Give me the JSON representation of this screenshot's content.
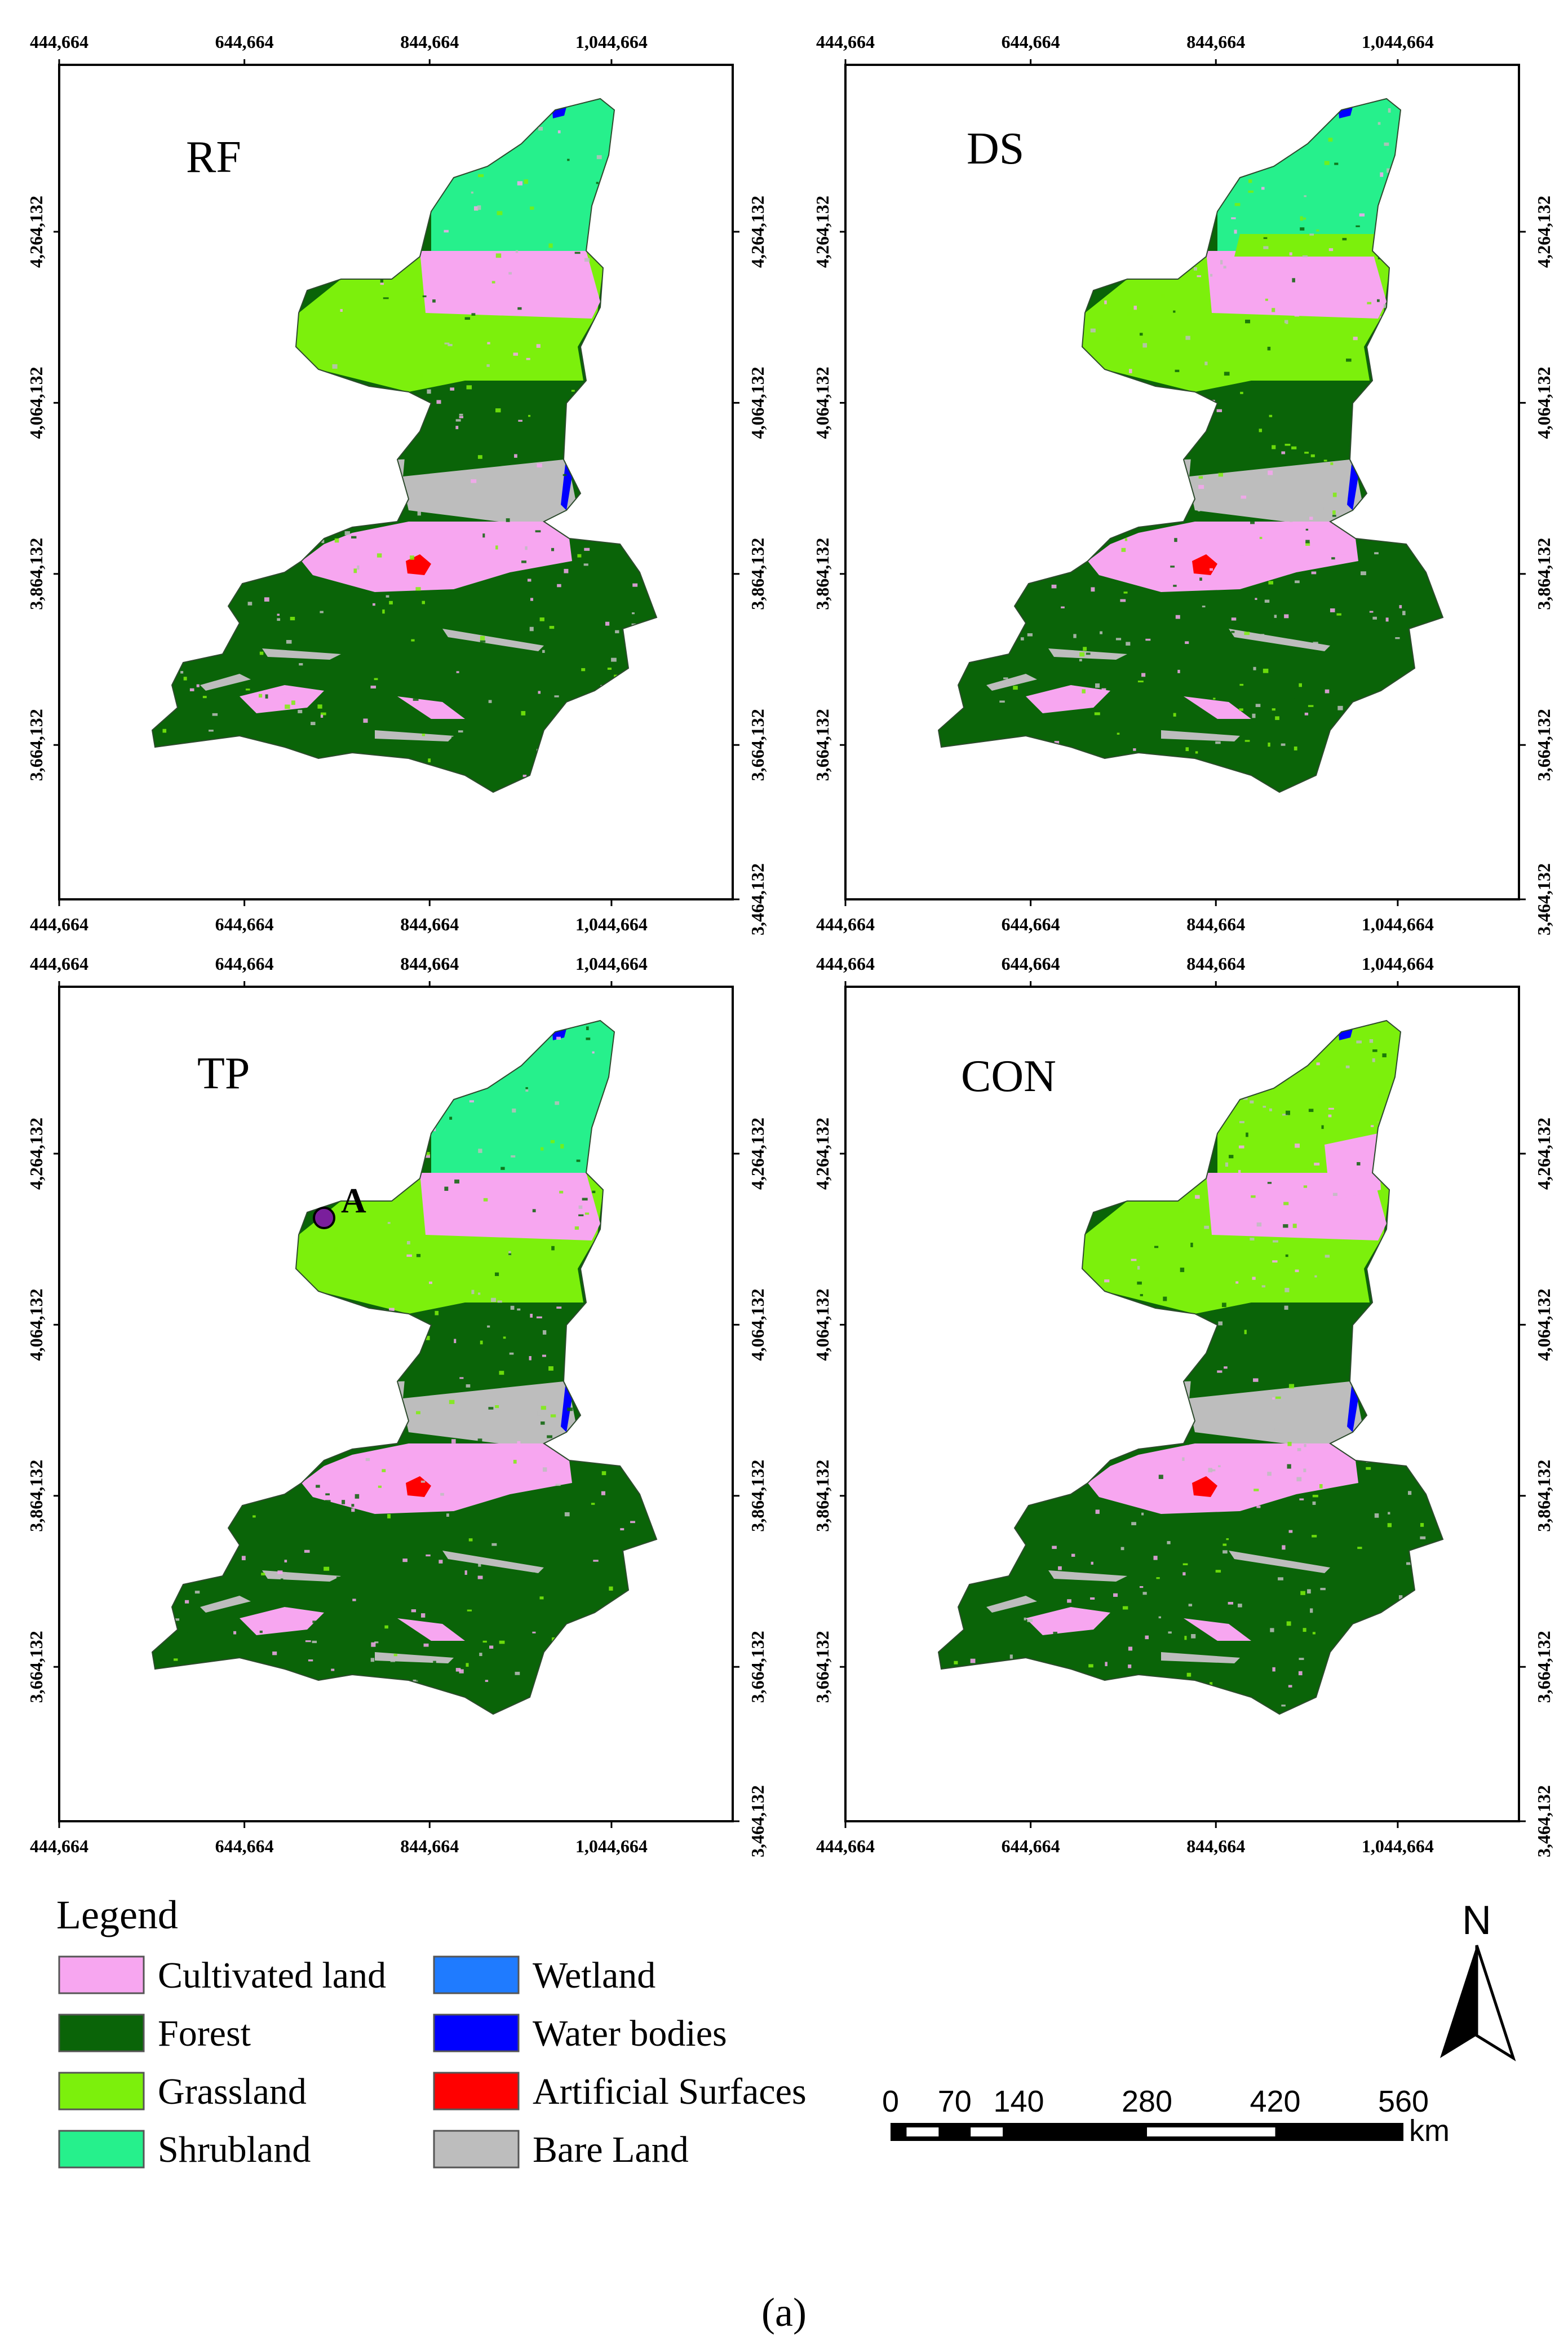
{
  "figure": {
    "caption": "(a)",
    "panels": [
      {
        "id": "rf",
        "title": "RF"
      },
      {
        "id": "ds",
        "title": "DS"
      },
      {
        "id": "tp",
        "title": "TP",
        "marker_label": "A"
      },
      {
        "id": "con",
        "title": "CON"
      }
    ],
    "axes": {
      "x_ticks": [
        "444,664",
        "644,664",
        "844,664",
        "1,044,664"
      ],
      "y_ticks": [
        "4,264,132",
        "4,064,132",
        "3,864,132",
        "3,664,132",
        "3,464,132"
      ]
    }
  },
  "legend": {
    "title": "Legend",
    "items": [
      {
        "label": "Cultivated land",
        "color": "#f7a6f0"
      },
      {
        "label": "Forest",
        "color": "#0a6408"
      },
      {
        "label": "Grassland",
        "color": "#7cf00c"
      },
      {
        "label": "Shrubland",
        "color": "#26f08c"
      },
      {
        "label": "Wetland",
        "color": "#1f7bff"
      },
      {
        "label": "Water bodies",
        "color": "#0000ff"
      },
      {
        "label": "Artificial Surfaces",
        "color": "#ff0000"
      },
      {
        "label": "Bare Land",
        "color": "#bdbdbd"
      }
    ]
  },
  "north_arrow": {
    "label": "N"
  },
  "scale_bar": {
    "ticks": [
      "0",
      "70",
      "140",
      "280",
      "420",
      "560"
    ],
    "unit": "km"
  }
}
